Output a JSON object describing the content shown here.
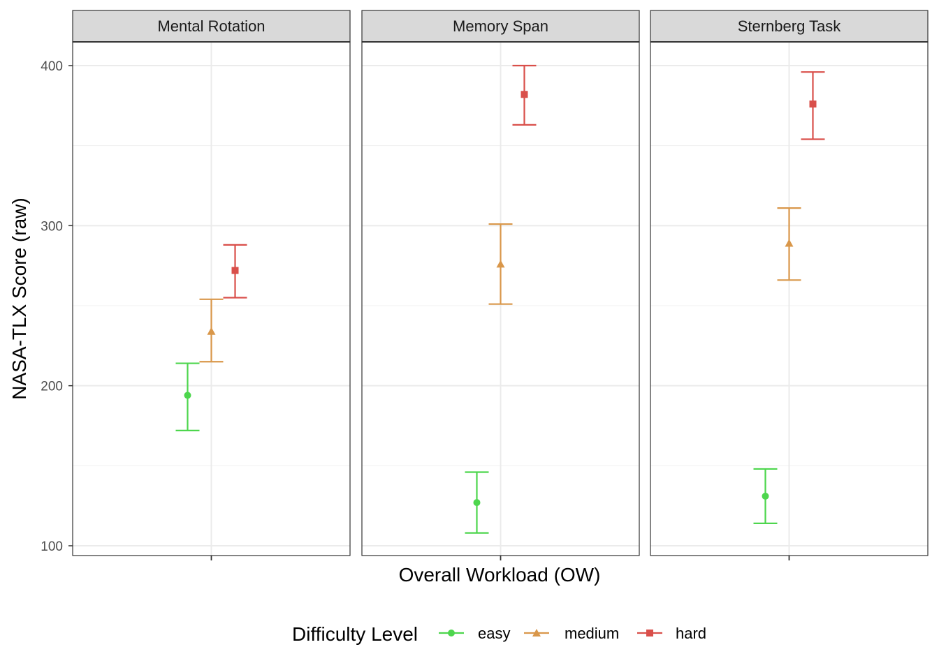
{
  "chart_data": {
    "type": "scatter",
    "subtype": "point-errorbar-faceted",
    "title": "",
    "xlabel": "Overall Workload (OW)",
    "ylabel": "NASA-TLX Score (raw)",
    "ylim": [
      95,
      415
    ],
    "y_ticks": [
      100,
      200,
      300,
      400
    ],
    "y_tick_labels": [
      "100",
      "200",
      "300",
      "400"
    ],
    "grid": true,
    "legend": {
      "title": "Difficulty Level",
      "position": "bottom",
      "entries": [
        {
          "label": "easy",
          "color": "#4dd64d",
          "shape": "circle"
        },
        {
          "label": "medium",
          "color": "#d9974a",
          "shape": "triangle"
        },
        {
          "label": "hard",
          "color": "#d94f4a",
          "shape": "square"
        }
      ]
    },
    "facets": [
      {
        "name": "Mental Rotation",
        "points": [
          {
            "level": "easy",
            "mean": 194,
            "lower": 172,
            "upper": 214
          },
          {
            "level": "medium",
            "mean": 234,
            "lower": 215,
            "upper": 254
          },
          {
            "level": "hard",
            "mean": 272,
            "lower": 255,
            "upper": 288
          }
        ]
      },
      {
        "name": "Memory Span",
        "points": [
          {
            "level": "easy",
            "mean": 127,
            "lower": 108,
            "upper": 146
          },
          {
            "level": "medium",
            "mean": 276,
            "lower": 251,
            "upper": 301
          },
          {
            "level": "hard",
            "mean": 382,
            "lower": 363,
            "upper": 400
          }
        ]
      },
      {
        "name": "Sternberg Task",
        "points": [
          {
            "level": "easy",
            "mean": 131,
            "lower": 114,
            "upper": 148
          },
          {
            "level": "medium",
            "mean": 289,
            "lower": 266,
            "upper": 311
          },
          {
            "level": "hard",
            "mean": 376,
            "lower": 354,
            "upper": 396
          }
        ]
      }
    ]
  }
}
